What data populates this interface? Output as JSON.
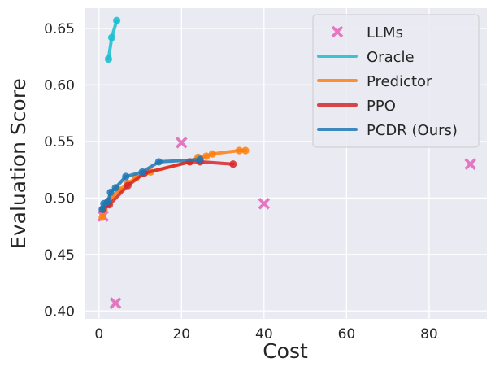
{
  "chart_data": {
    "type": "line",
    "title": "",
    "xlabel": "Cost",
    "ylabel": "Evaluation Score",
    "xlim": [
      -3.5,
      94
    ],
    "ylim": [
      0.393,
      0.668
    ],
    "xticks": [
      0,
      20,
      40,
      60,
      80
    ],
    "yticks": [
      0.4,
      0.45,
      0.5,
      0.55,
      0.6,
      0.65
    ],
    "xtick_labels": [
      "0",
      "20",
      "40",
      "60",
      "80"
    ],
    "ytick_labels": [
      "0.40",
      "0.45",
      "0.50",
      "0.55",
      "0.60",
      "0.65"
    ],
    "grid": true,
    "background": "#eaeaf2",
    "legend_position": "top-right",
    "series": [
      {
        "name": "LLMs",
        "kind": "scatter",
        "marker": "x",
        "color": "#e377c2",
        "points": [
          [
            1,
            0.484
          ],
          [
            4,
            0.407
          ],
          [
            20,
            0.549
          ],
          [
            40,
            0.495
          ],
          [
            90,
            0.53
          ]
        ]
      },
      {
        "name": "Oracle",
        "kind": "line",
        "color": "#17becf",
        "points": [
          [
            2.3,
            0.623
          ],
          [
            3.1,
            0.642
          ],
          [
            4.3,
            0.657
          ]
        ]
      },
      {
        "name": "Predictor",
        "kind": "line",
        "color": "#ff7f0e",
        "points": [
          [
            0.8,
            0.483
          ],
          [
            1.2,
            0.49
          ],
          [
            2.0,
            0.496
          ],
          [
            3.0,
            0.501
          ],
          [
            5.0,
            0.507
          ],
          [
            7.0,
            0.513
          ],
          [
            9.0,
            0.518
          ],
          [
            12.5,
            0.523
          ],
          [
            22.0,
            0.532
          ],
          [
            24.0,
            0.536
          ],
          [
            26.0,
            0.537
          ],
          [
            27.5,
            0.539
          ],
          [
            34.0,
            0.542
          ],
          [
            35.5,
            0.542
          ]
        ]
      },
      {
        "name": "PPO",
        "kind": "line",
        "color": "#d62728",
        "points": [
          [
            1.0,
            0.49
          ],
          [
            2.5,
            0.494
          ],
          [
            7.0,
            0.511
          ],
          [
            11.0,
            0.522
          ],
          [
            22.0,
            0.532
          ],
          [
            24.5,
            0.532
          ],
          [
            32.5,
            0.53
          ]
        ]
      },
      {
        "name": "PCDR (Ours)",
        "kind": "line",
        "color": "#1f77b4",
        "points": [
          [
            0.8,
            0.49
          ],
          [
            1.2,
            0.495
          ],
          [
            2.2,
            0.497
          ],
          [
            2.8,
            0.505
          ],
          [
            4.0,
            0.509
          ],
          [
            6.5,
            0.519
          ],
          [
            10.5,
            0.523
          ],
          [
            14.5,
            0.532
          ],
          [
            24.5,
            0.534
          ]
        ]
      }
    ]
  }
}
